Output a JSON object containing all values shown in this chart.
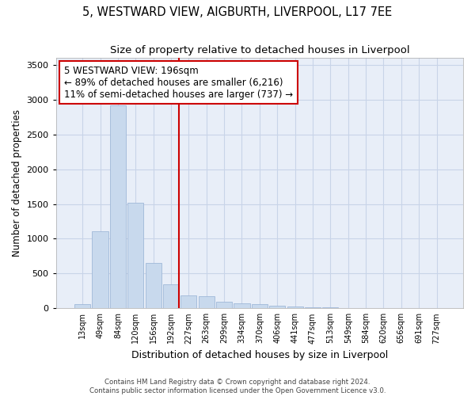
{
  "title": "5, WESTWARD VIEW, AIGBURTH, LIVERPOOL, L17 7EE",
  "subtitle": "Size of property relative to detached houses in Liverpool",
  "xlabel": "Distribution of detached houses by size in Liverpool",
  "ylabel": "Number of detached properties",
  "bar_color": "#c8d9ed",
  "bar_edge_color": "#a0b8d8",
  "grid_color": "#c8d4e8",
  "background_color": "#e8eef8",
  "vline_color": "#cc0000",
  "annotation_text": "5 WESTWARD VIEW: 196sqm\n← 89% of detached houses are smaller (6,216)\n11% of semi-detached houses are larger (737) →",
  "annotation_box_color": "#cc0000",
  "categories": [
    "13sqm",
    "49sqm",
    "84sqm",
    "120sqm",
    "156sqm",
    "192sqm",
    "227sqm",
    "263sqm",
    "299sqm",
    "334sqm",
    "370sqm",
    "406sqm",
    "441sqm",
    "477sqm",
    "513sqm",
    "549sqm",
    "584sqm",
    "620sqm",
    "656sqm",
    "691sqm",
    "727sqm"
  ],
  "values": [
    55,
    1110,
    2920,
    1520,
    650,
    340,
    190,
    175,
    95,
    75,
    55,
    40,
    25,
    18,
    10,
    6,
    4,
    2,
    2,
    2,
    1
  ],
  "vline_index": 5,
  "ylim": [
    0,
    3600
  ],
  "yticks": [
    0,
    500,
    1000,
    1500,
    2000,
    2500,
    3000,
    3500
  ],
  "bar_width": 0.9,
  "footnote": "Contains HM Land Registry data © Crown copyright and database right 2024.\nContains public sector information licensed under the Open Government Licence v3.0."
}
